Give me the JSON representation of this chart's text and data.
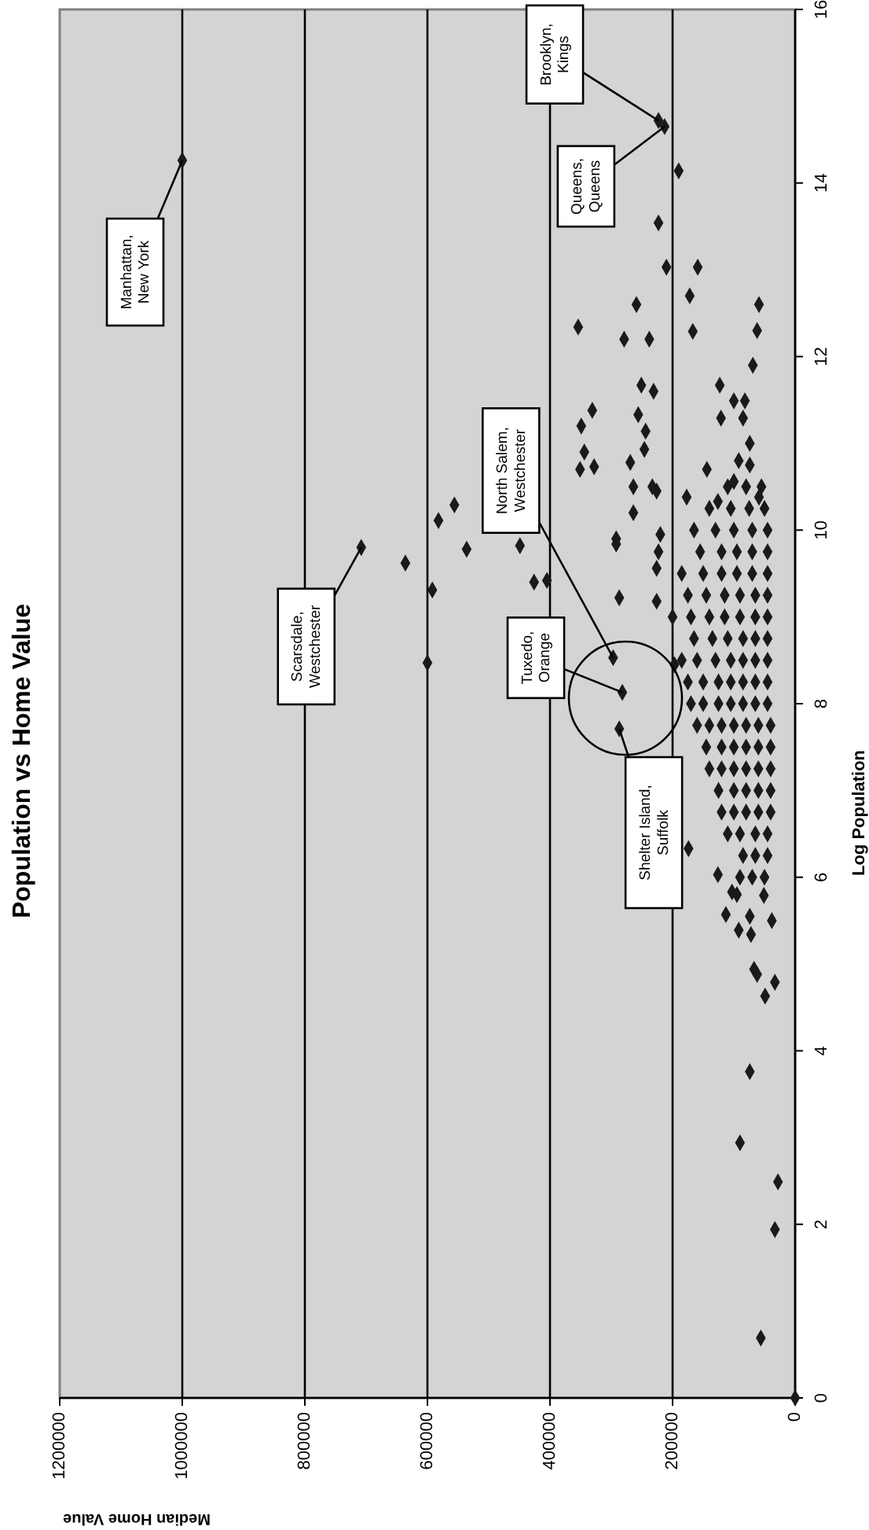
{
  "chart_data": {
    "type": "scatter",
    "title": "Population  vs Home Value",
    "xlabel": "Median Home Value",
    "ylabel": "Log Population",
    "xlim": [
      1200000,
      0
    ],
    "xticks": [
      1200000,
      1000000,
      800000,
      600000,
      400000,
      200000,
      0
    ],
    "ylim": [
      0,
      16
    ],
    "yticks": [
      0,
      2,
      4,
      6,
      8,
      10,
      12,
      14,
      16
    ],
    "grid": "x",
    "marker": "diamond",
    "series": [
      {
        "color": "#1a1a1a",
        "values": [
          14.26,
          9.8,
          9.62,
          9.31,
          8.47,
          10.11,
          10.29,
          9.78,
          9.82,
          9.4,
          9.42,
          14.72,
          14.65,
          14.14,
          13.54,
          13.03,
          13.03,
          12.7,
          12.6,
          12.6,
          12.34,
          12.29,
          12.3,
          12.2,
          12.2,
          11.9,
          11.67,
          11.6,
          11.67,
          11.38,
          11.49,
          11.49,
          11.2,
          11.33,
          11.29,
          11.29,
          11.14,
          10.9,
          10.93,
          10.73,
          10.7,
          10.78,
          10.5,
          10.5,
          10.45,
          10.2,
          11.0,
          10.8,
          10.7,
          10.56,
          10.38,
          10.38,
          10.33,
          10.75,
          8.53,
          8.13,
          7.71,
          9.9,
          9.84,
          9.95,
          9.75,
          9.56,
          9.22,
          9.18,
          8.45,
          6.33,
          6.03,
          5.83,
          5.57,
          5.55,
          5.39,
          5.34,
          5.5,
          5.79,
          4.94,
          4.88,
          4.79,
          4.63,
          3.76,
          2.94,
          2.49,
          1.94,
          0.69,
          0,
          6.0,
          6.0,
          6.0,
          5.8,
          6.25,
          6.25,
          6.25,
          6.5,
          6.5,
          6.5,
          6.5,
          6.75,
          6.75,
          6.75,
          6.75,
          6.75,
          7.0,
          7.0,
          7.0,
          7.0,
          7.0,
          7.25,
          7.25,
          7.25,
          7.25,
          7.25,
          7.25,
          7.5,
          7.5,
          7.5,
          7.5,
          7.5,
          7.5,
          7.75,
          7.75,
          7.75,
          7.75,
          7.75,
          7.75,
          7.75,
          8.0,
          8.0,
          8.0,
          8.0,
          8.0,
          8.0,
          8.0,
          8.25,
          8.25,
          8.25,
          8.25,
          8.25,
          8.25,
          8.25,
          8.5,
          8.5,
          8.5,
          8.5,
          8.5,
          8.5,
          8.5,
          8.75,
          8.75,
          8.75,
          8.75,
          8.75,
          8.75,
          9.0,
          9.0,
          9.0,
          9.0,
          9.0,
          9.0,
          9.0,
          9.25,
          9.25,
          9.25,
          9.25,
          9.25,
          9.25,
          9.5,
          9.5,
          9.5,
          9.5,
          9.5,
          9.5,
          9.75,
          9.75,
          9.75,
          9.75,
          9.75,
          10.0,
          10.0,
          10.0,
          10.0,
          10.0,
          10.25,
          10.25,
          10.25,
          10.25,
          10.5,
          10.5,
          10.5
        ],
        "x": [
          1000000,
          708000,
          636000,
          592000,
          600000,
          582000,
          556000,
          536000,
          449000,
          426000,
          405000,
          223000,
          213000,
          190000,
          223000,
          210000,
          159000,
          172000,
          259000,
          59000,
          354000,
          167000,
          62000,
          279000,
          238000,
          69000,
          251000,
          231000,
          123000,
          331000,
          100000,
          82000,
          349000,
          256000,
          121000,
          85000,
          244000,
          344000,
          246000,
          328000,
          351000,
          269000,
          264000,
          233000,
          226000,
          264000,
          74000,
          92000,
          144000,
          100000,
          59000,
          177000,
          126000,
          74000,
          297000,
          282000,
          287000,
          292000,
          292000,
          220000,
          223000,
          226000,
          287000,
          226000,
          197000,
          174000,
          126000,
          103000,
          113000,
          74000,
          92000,
          72000,
          38000,
          51000,
          67000,
          62000,
          33000,
          49000,
          74000,
          90000,
          28000,
          33000,
          56000,
          0,
          50000,
          70000,
          90000,
          95000,
          45000,
          65000,
          85000,
          45000,
          65000,
          90000,
          110000,
          40000,
          60000,
          80000,
          100000,
          120000,
          40000,
          60000,
          80000,
          100000,
          125000,
          40000,
          60000,
          80000,
          100000,
          120000,
          140000,
          40000,
          60000,
          80000,
          100000,
          120000,
          145000,
          40000,
          60000,
          80000,
          100000,
          120000,
          140000,
          160000,
          45000,
          65000,
          85000,
          105000,
          125000,
          150000,
          170000,
          45000,
          65000,
          85000,
          105000,
          125000,
          150000,
          175000,
          45000,
          65000,
          85000,
          105000,
          130000,
          160000,
          185000,
          45000,
          65000,
          85000,
          110000,
          135000,
          165000,
          45000,
          65000,
          90000,
          115000,
          140000,
          170000,
          200000,
          45000,
          65000,
          90000,
          115000,
          145000,
          175000,
          45000,
          70000,
          95000,
          120000,
          150000,
          185000,
          45000,
          70000,
          95000,
          120000,
          155000,
          45000,
          70000,
          100000,
          130000,
          165000,
          50000,
          75000,
          105000,
          140000,
          55000,
          80000,
          110000
        ]
      }
    ],
    "annotations": [
      {
        "text": "Manhattan,\nNew York",
        "x": 1000000,
        "y": 14.26
      },
      {
        "text": "Scarsdale,\nWestchester",
        "x": 708000,
        "y": 9.8
      },
      {
        "text": "North Salem,\nWestchester",
        "x": 297000,
        "y": 8.53
      },
      {
        "text": "Tuxedo,\nOrange",
        "x": 282000,
        "y": 8.13
      },
      {
        "text": "Shelter Island,\nSuffolk",
        "x": 287000,
        "y": 7.71
      },
      {
        "text": "Brooklyn,\nKings",
        "x": 223000,
        "y": 14.72
      },
      {
        "text": "Queens,\nQueens",
        "x": 213000,
        "y": 14.65
      }
    ]
  }
}
